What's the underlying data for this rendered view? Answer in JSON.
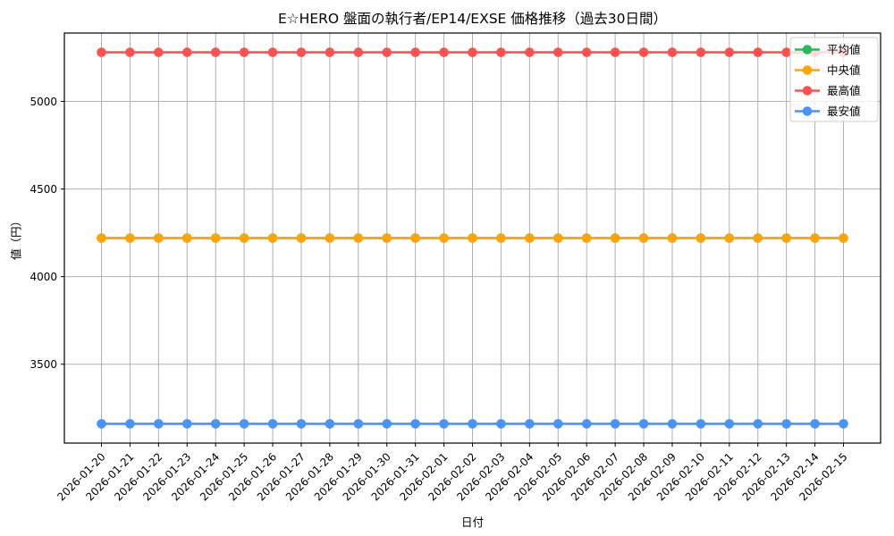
{
  "chart_data": {
    "type": "line",
    "title": "E☆HERO 盤面の執行者/EP14/EXSE 価格推移（過去30日間）",
    "xlabel": "日付",
    "ylabel": "値（円）",
    "x": [
      "2026-01-20",
      "2026-01-21",
      "2026-01-22",
      "2026-01-23",
      "2026-01-24",
      "2026-01-25",
      "2026-01-26",
      "2026-01-27",
      "2026-01-28",
      "2026-01-29",
      "2026-01-30",
      "2026-01-31",
      "2026-02-01",
      "2026-02-02",
      "2026-02-03",
      "2026-02-04",
      "2026-02-05",
      "2026-02-06",
      "2026-02-07",
      "2026-02-08",
      "2026-02-09",
      "2026-02-10",
      "2026-02-11",
      "2026-02-12",
      "2026-02-13",
      "2026-02-14",
      "2026-02-15"
    ],
    "series": [
      {
        "id": "average",
        "name": "平均値",
        "color": "#2eb85c",
        "values": [
          4220,
          4220,
          4220,
          4220,
          4220,
          4220,
          4220,
          4220,
          4220,
          4220,
          4220,
          4220,
          4220,
          4220,
          4220,
          4220,
          4220,
          4220,
          4220,
          4220,
          4220,
          4220,
          4220,
          4220,
          4220,
          4220,
          4220
        ]
      },
      {
        "id": "median",
        "name": "中央値",
        "color": "#ffa500",
        "values": [
          4220,
          4220,
          4220,
          4220,
          4220,
          4220,
          4220,
          4220,
          4220,
          4220,
          4220,
          4220,
          4220,
          4220,
          4220,
          4220,
          4220,
          4220,
          4220,
          4220,
          4220,
          4220,
          4220,
          4220,
          4220,
          4220,
          4220
        ]
      },
      {
        "id": "max",
        "name": "最高値",
        "color": "#ff5252",
        "values": [
          5280,
          5280,
          5280,
          5280,
          5280,
          5280,
          5280,
          5280,
          5280,
          5280,
          5280,
          5280,
          5280,
          5280,
          5280,
          5280,
          5280,
          5280,
          5280,
          5280,
          5280,
          5280,
          5280,
          5280,
          5280,
          5280,
          5280
        ]
      },
      {
        "id": "min",
        "name": "最安値",
        "color": "#4a94f8",
        "values": [
          3160,
          3160,
          3160,
          3160,
          3160,
          3160,
          3160,
          3160,
          3160,
          3160,
          3160,
          3160,
          3160,
          3160,
          3160,
          3160,
          3160,
          3160,
          3160,
          3160,
          3160,
          3160,
          3160,
          3160,
          3160,
          3160,
          3160
        ]
      }
    ],
    "yticks": [
      3500,
      4000,
      4500,
      5000
    ],
    "ylim": [
      3050,
      5390
    ],
    "grid": true,
    "legend_position": "upper right",
    "colors": {
      "grid": "#b0b0b0",
      "spine": "#000000",
      "legend_border": "#cccccc",
      "background": "#ffffff"
    }
  }
}
